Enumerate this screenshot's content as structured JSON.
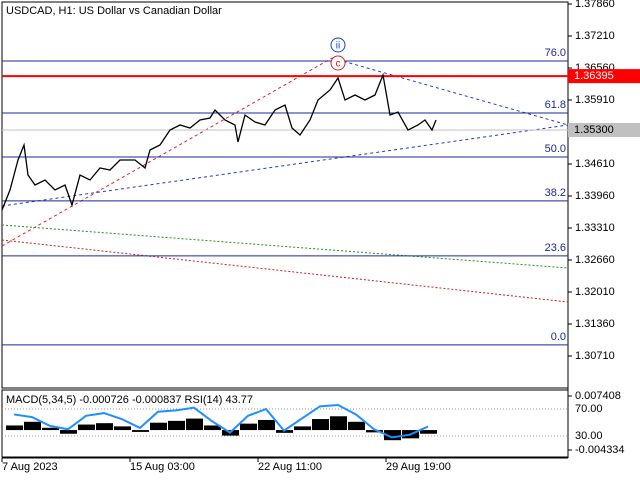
{
  "chart_data": [
    {
      "type": "line",
      "title": "USDCAD, H1:  US Dollar vs Canadian Dollar",
      "x": [
        0,
        8,
        16,
        22,
        26,
        33,
        43,
        53,
        63,
        70,
        78,
        88,
        98,
        108,
        118,
        133,
        143,
        148,
        158,
        168,
        178,
        188,
        198,
        208,
        213,
        223,
        233,
        236,
        243,
        253,
        263,
        273,
        283,
        290,
        298,
        308,
        316,
        328,
        336,
        343,
        353,
        363,
        373,
        381,
        388,
        396,
        406,
        416,
        423,
        430,
        434
      ],
      "series": [
        {
          "color": "#000000",
          "values": [
            1.33675,
            1.34082,
            1.34691,
            1.34996,
            1.34386,
            1.34183,
            1.34285,
            1.34082,
            1.34183,
            1.33777,
            1.34386,
            1.34285,
            1.34529,
            1.34488,
            1.34691,
            1.34691,
            1.34529,
            1.34894,
            1.34996,
            1.353,
            1.35402,
            1.35341,
            1.35504,
            1.35544,
            1.35707,
            1.35504,
            1.35402,
            1.35057,
            1.35605,
            1.35463,
            1.35402,
            1.35707,
            1.35808,
            1.35341,
            1.35199,
            1.35504,
            1.3591,
            1.36113,
            1.36357,
            1.3591,
            1.36011,
            1.3591,
            1.36011,
            1.36418,
            1.35605,
            1.35666,
            1.353,
            1.35402,
            1.35504,
            1.353,
            1.35504
          ]
        }
      ],
      "xlim": [
        0,
        566
      ],
      "xticks": [
        {
          "value": 0,
          "label": "7 Aug 2023"
        },
        {
          "value": 128,
          "label": "15 Aug 03:00"
        },
        {
          "value": 256,
          "label": "22 Aug 11:00"
        },
        {
          "value": 384,
          "label": "29 Aug 19:00"
        }
      ],
      "ylim": [
        1.3006,
        1.37941
      ],
      "yticks": [
        {
          "value": 1.3786,
          "label": "1.37860"
        },
        {
          "value": 1.3721,
          "label": "1.37210"
        },
        {
          "value": 1.3656,
          "label": "1.36560"
        },
        {
          "value": 1.3591,
          "label": "1.35910"
        },
        {
          "value": 1.3461,
          "label": "1.34610"
        },
        {
          "value": 1.3396,
          "label": "1.33960"
        },
        {
          "value": 1.3331,
          "label": "1.33310"
        },
        {
          "value": 1.3266,
          "label": "1.32660"
        },
        {
          "value": 1.3201,
          "label": "1.32010"
        },
        {
          "value": 1.3136,
          "label": "1.31360"
        },
        {
          "value": 1.3071,
          "label": "1.30710"
        }
      ],
      "levels": [
        {
          "label": "76.0",
          "value": 1.36702
        },
        {
          "label": "61.8",
          "value": 1.35646
        },
        {
          "label": "50.0",
          "value": 1.34753
        },
        {
          "label": "38.2",
          "value": 1.3386
        },
        {
          "label": "23.6",
          "value": 1.32743
        },
        {
          "label": "0.0",
          "value": 1.30936
        }
      ],
      "price_lines": [
        {
          "value": 1.36395,
          "label": "1.36395",
          "color": "#ff0000"
        },
        {
          "value": 1.353,
          "label": "1.35300",
          "color": "#c0c0c0"
        }
      ],
      "annotations": [
        {
          "text": "ii",
          "color": "#1a3fd0"
        },
        {
          "text": "c",
          "color": "#e02020"
        }
      ]
    },
    {
      "type": "bar",
      "title": "MACD(5,34,5) -0.000726 -0.000837 RSI(14) 43.77",
      "x": [
        4,
        22,
        40,
        58,
        76,
        94,
        112,
        130,
        148,
        166,
        184,
        202,
        220,
        238,
        256,
        274,
        292,
        310,
        328,
        346,
        364,
        382,
        400,
        418
      ],
      "values": [
        0.001,
        0.0018,
        0.0005,
        -0.0008,
        0.0012,
        0.0015,
        0.0008,
        -0.0004,
        0.0016,
        0.002,
        0.0025,
        0.001,
        -0.0012,
        0.0014,
        0.0022,
        -0.0006,
        0.0008,
        0.0024,
        0.003,
        0.0018,
        -0.0005,
        -0.0022,
        -0.0018,
        -0.0008
      ],
      "color": "#000000",
      "ylim": [
        -0.004334,
        0.007408
      ],
      "yticks": [
        0.007408,
        -0.004334
      ],
      "series": [
        {
          "color": "#1e90ff",
          "axis": "y2",
          "values": [
            62,
            58,
            45,
            40,
            60,
            64,
            55,
            42,
            66,
            68,
            72,
            52,
            35,
            60,
            70,
            38,
            56,
            74,
            76,
            62,
            40,
            28,
            32,
            44
          ]
        }
      ],
      "y2lim": [
        9.3,
        89.3
      ],
      "y2ticks": [
        {
          "value": 70,
          "label": "70.00"
        },
        {
          "value": 30,
          "label": "30.00"
        }
      ]
    }
  ]
}
